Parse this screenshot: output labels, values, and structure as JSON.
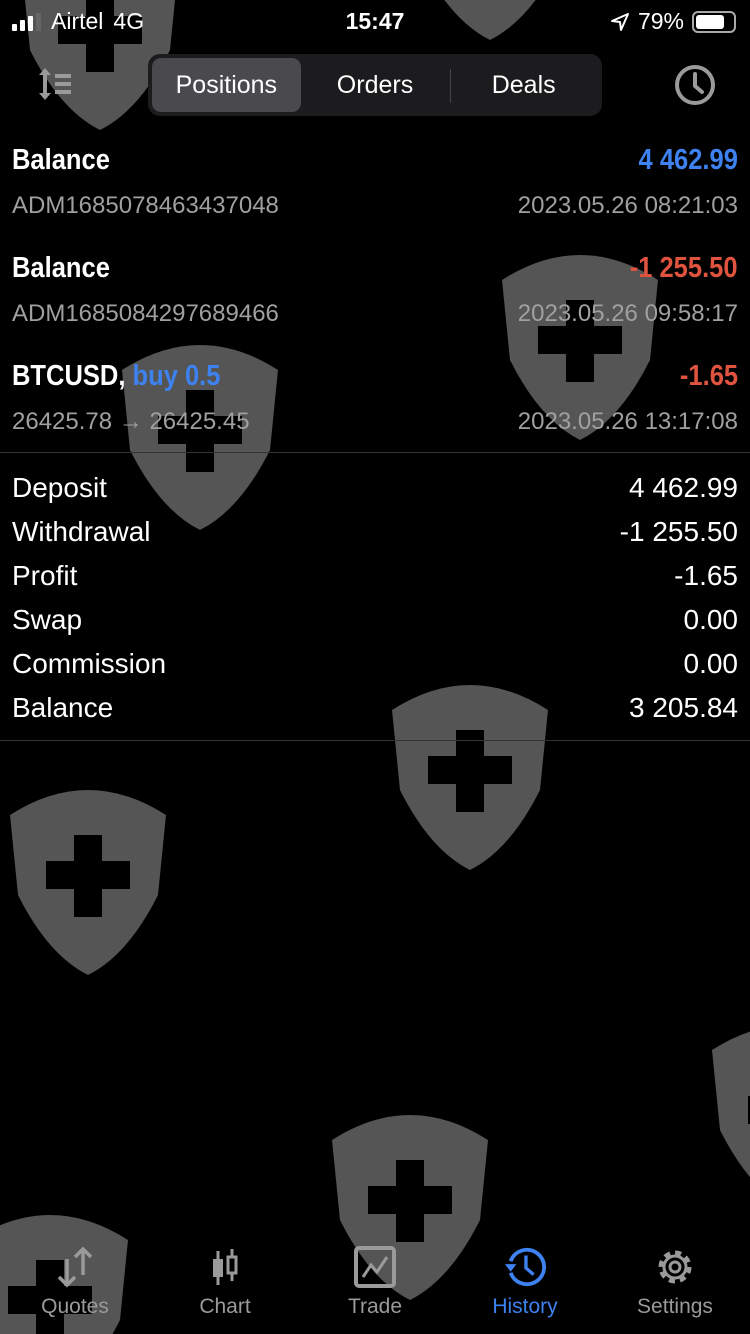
{
  "status_bar": {
    "carrier": "Airtel",
    "network": "4G",
    "time": "15:47",
    "battery": "79%",
    "battery_level": 0.79
  },
  "toolbar": {
    "segments": [
      {
        "label": "Positions",
        "active": true
      },
      {
        "label": "Orders",
        "active": false
      },
      {
        "label": "Deals",
        "active": false
      }
    ]
  },
  "deals": [
    {
      "title": "Balance",
      "detail": "",
      "value": "4 462.99",
      "value_color": "#3d82f0",
      "sub": "ADM1685078463437048",
      "date": "2023.05.26 08:21:03"
    },
    {
      "title": "Balance",
      "detail": "",
      "value": "-1 255.50",
      "value_color": "#e0533f",
      "sub": "ADM1685084297689466",
      "date": "2023.05.26 09:58:17"
    },
    {
      "title": "BTCUSD,",
      "detail": "buy 0.5",
      "value": "-1.65",
      "value_color": "#e0533f",
      "sub": "26425.78 → 26425.45",
      "date": "2023.05.26 13:17:08"
    }
  ],
  "summary": [
    {
      "label": "Deposit",
      "value": "4 462.99"
    },
    {
      "label": "Withdrawal",
      "value": "-1 255.50"
    },
    {
      "label": "Profit",
      "value": "-1.65"
    },
    {
      "label": "Swap",
      "value": "0.00"
    },
    {
      "label": "Commission",
      "value": "0.00"
    },
    {
      "label": "Balance",
      "value": "3 205.84"
    }
  ],
  "tabbar": [
    {
      "label": "Quotes",
      "icon": "quotes-arrows-icon"
    },
    {
      "label": "Chart",
      "icon": "candlestick-icon"
    },
    {
      "label": "Trade",
      "icon": "trade-chart-icon"
    },
    {
      "label": "History",
      "icon": "history-icon",
      "active": true
    },
    {
      "label": "Settings",
      "icon": "gear-icon"
    }
  ],
  "colors": {
    "accent": "#3d82f0",
    "negative": "#e0533f",
    "watermark": "#555555"
  }
}
